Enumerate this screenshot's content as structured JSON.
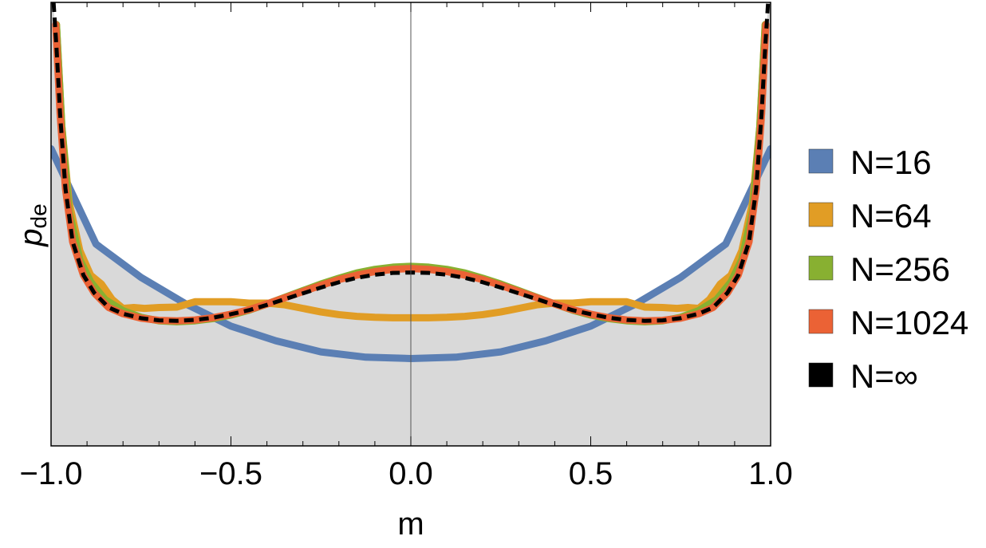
{
  "chart_data": {
    "type": "line",
    "title": "",
    "xlabel": "m",
    "ylabel_main": "p",
    "ylabel_sub": "de",
    "xlim": [
      -1.0,
      1.0
    ],
    "ylim": [
      0,
      1
    ],
    "y_ticks_shown": false,
    "x_ticks": [
      -1.0,
      -0.5,
      0.0,
      0.5,
      1.0
    ],
    "x_tick_labels": [
      "−1.0",
      "−0.5",
      "0.0",
      "0.5",
      "1.0"
    ],
    "fill_under": true,
    "fill_color": "#d9d9d9",
    "legend_position": "right",
    "series": [
      {
        "name": "N=16",
        "color": "#5b7fb4",
        "dashed": false,
        "x": [
          -1.0,
          -0.875,
          -0.75,
          -0.625,
          -0.5,
          -0.375,
          -0.25,
          -0.125,
          0.0,
          0.125,
          0.25,
          0.375,
          0.5,
          0.625,
          0.75,
          0.875,
          1.0
        ],
        "y": [
          0.67,
          0.455,
          0.38,
          0.32,
          0.27,
          0.237,
          0.212,
          0.2,
          0.197,
          0.2,
          0.212,
          0.237,
          0.27,
          0.32,
          0.38,
          0.455,
          0.67
        ]
      },
      {
        "name": "N=64",
        "color": "#e19d25",
        "dashed": false,
        "x": [
          -0.985,
          -0.97,
          -0.95,
          -0.92,
          -0.89,
          -0.86,
          -0.83,
          -0.8,
          -0.77,
          -0.74,
          -0.7,
          -0.65,
          -0.6,
          -0.55,
          -0.5,
          -0.45,
          -0.4,
          -0.35,
          -0.3,
          -0.25,
          -0.2,
          -0.15,
          -0.1,
          -0.05,
          0.0,
          0.05,
          0.1,
          0.15,
          0.2,
          0.25,
          0.3,
          0.35,
          0.4,
          0.45,
          0.5,
          0.55,
          0.6,
          0.65,
          0.7,
          0.74,
          0.77,
          0.8,
          0.83,
          0.86,
          0.89,
          0.92,
          0.95,
          0.97,
          0.985
        ],
        "y": [
          0.95,
          0.72,
          0.55,
          0.44,
          0.385,
          0.365,
          0.33,
          0.31,
          0.312,
          0.31,
          0.312,
          0.313,
          0.325,
          0.325,
          0.325,
          0.322,
          0.322,
          0.318,
          0.31,
          0.302,
          0.296,
          0.292,
          0.29,
          0.289,
          0.289,
          0.289,
          0.29,
          0.292,
          0.296,
          0.302,
          0.31,
          0.318,
          0.322,
          0.322,
          0.325,
          0.325,
          0.325,
          0.313,
          0.312,
          0.31,
          0.312,
          0.31,
          0.33,
          0.365,
          0.385,
          0.44,
          0.55,
          0.72,
          0.95
        ]
      },
      {
        "name": "N=256",
        "color": "#88b031",
        "dashed": false,
        "x": [
          -0.985,
          -0.97,
          -0.95,
          -0.92,
          -0.89,
          -0.85,
          -0.8,
          -0.75,
          -0.7,
          -0.65,
          -0.6,
          -0.55,
          -0.5,
          -0.45,
          -0.4,
          -0.35,
          -0.3,
          -0.25,
          -0.2,
          -0.15,
          -0.1,
          -0.05,
          0.0,
          0.05,
          0.1,
          0.15,
          0.2,
          0.25,
          0.3,
          0.35,
          0.4,
          0.45,
          0.5,
          0.55,
          0.6,
          0.65,
          0.7,
          0.75,
          0.8,
          0.85,
          0.89,
          0.92,
          0.95,
          0.97,
          0.985
        ],
        "y": [
          0.95,
          0.72,
          0.53,
          0.42,
          0.37,
          0.33,
          0.305,
          0.29,
          0.282,
          0.28,
          0.282,
          0.287,
          0.295,
          0.306,
          0.32,
          0.335,
          0.35,
          0.365,
          0.378,
          0.39,
          0.398,
          0.403,
          0.405,
          0.403,
          0.398,
          0.39,
          0.378,
          0.365,
          0.35,
          0.335,
          0.32,
          0.306,
          0.295,
          0.287,
          0.282,
          0.28,
          0.282,
          0.29,
          0.305,
          0.33,
          0.37,
          0.42,
          0.53,
          0.72,
          0.95
        ]
      },
      {
        "name": "N=1024",
        "color": "#eb6235",
        "dashed": false,
        "x": [
          -0.987,
          -0.975,
          -0.96,
          -0.94,
          -0.91,
          -0.88,
          -0.84,
          -0.8,
          -0.75,
          -0.7,
          -0.65,
          -0.6,
          -0.55,
          -0.5,
          -0.45,
          -0.4,
          -0.35,
          -0.3,
          -0.25,
          -0.2,
          -0.15,
          -0.1,
          -0.05,
          0.0,
          0.05,
          0.1,
          0.15,
          0.2,
          0.25,
          0.3,
          0.35,
          0.4,
          0.45,
          0.5,
          0.55,
          0.6,
          0.65,
          0.7,
          0.75,
          0.8,
          0.84,
          0.88,
          0.91,
          0.94,
          0.96,
          0.975,
          0.987
        ],
        "y": [
          0.95,
          0.75,
          0.58,
          0.46,
          0.385,
          0.345,
          0.312,
          0.298,
          0.288,
          0.283,
          0.282,
          0.284,
          0.289,
          0.297,
          0.307,
          0.32,
          0.334,
          0.348,
          0.362,
          0.375,
          0.385,
          0.393,
          0.398,
          0.4,
          0.398,
          0.393,
          0.385,
          0.375,
          0.362,
          0.348,
          0.334,
          0.32,
          0.307,
          0.297,
          0.289,
          0.284,
          0.282,
          0.283,
          0.288,
          0.298,
          0.312,
          0.345,
          0.385,
          0.46,
          0.58,
          0.75,
          0.95
        ]
      },
      {
        "name": "N=∞",
        "color": "#000000",
        "dashed": true,
        "x": [
          -0.993,
          -0.985,
          -0.975,
          -0.96,
          -0.94,
          -0.91,
          -0.88,
          -0.84,
          -0.8,
          -0.75,
          -0.7,
          -0.65,
          -0.6,
          -0.55,
          -0.5,
          -0.45,
          -0.4,
          -0.35,
          -0.3,
          -0.25,
          -0.2,
          -0.15,
          -0.1,
          -0.05,
          0.0,
          0.05,
          0.1,
          0.15,
          0.2,
          0.25,
          0.3,
          0.35,
          0.4,
          0.45,
          0.5,
          0.55,
          0.6,
          0.65,
          0.7,
          0.75,
          0.8,
          0.84,
          0.88,
          0.91,
          0.94,
          0.96,
          0.975,
          0.985,
          0.993
        ],
        "y": [
          1.0,
          0.9,
          0.75,
          0.58,
          0.46,
          0.385,
          0.345,
          0.312,
          0.298,
          0.288,
          0.283,
          0.282,
          0.284,
          0.289,
          0.297,
          0.306,
          0.318,
          0.331,
          0.344,
          0.357,
          0.369,
          0.379,
          0.386,
          0.39,
          0.391,
          0.39,
          0.386,
          0.379,
          0.369,
          0.357,
          0.344,
          0.331,
          0.318,
          0.306,
          0.297,
          0.289,
          0.284,
          0.282,
          0.283,
          0.288,
          0.298,
          0.312,
          0.345,
          0.385,
          0.46,
          0.58,
          0.75,
          0.9,
          1.0
        ]
      }
    ]
  }
}
